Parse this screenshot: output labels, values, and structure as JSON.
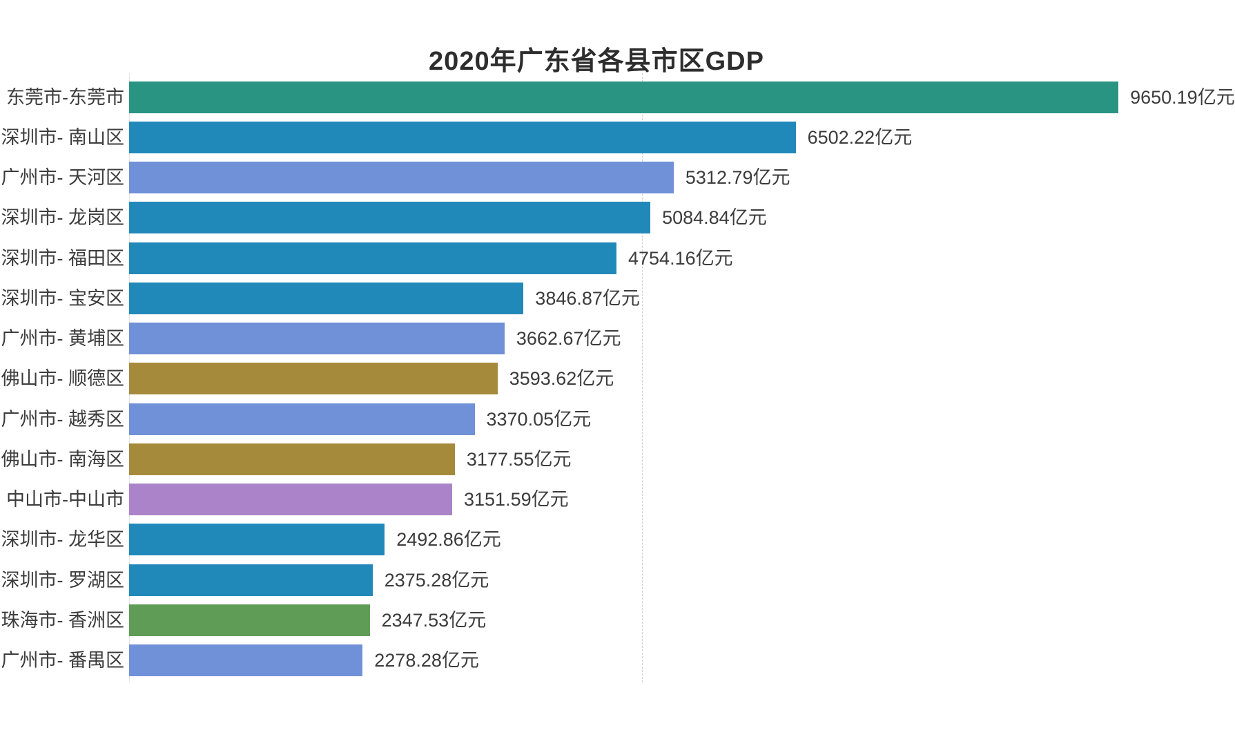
{
  "page": {
    "background": "#ffffff"
  },
  "chart_data": {
    "type": "bar",
    "orientation": "horizontal",
    "title": "2020年广东省各县市区GDP",
    "unit": "亿元",
    "categories": [
      "东莞市-东莞市",
      "深圳市- 南山区",
      "广州市- 天河区",
      "深圳市- 龙岗区",
      "深圳市- 福田区",
      "深圳市- 宝安区",
      "广州市- 黄埔区",
      "佛山市- 顺德区",
      "广州市- 越秀区",
      "佛山市- 南海区",
      "中山市-中山市",
      "深圳市- 龙华区",
      "深圳市- 罗湖区",
      "珠海市- 香洲区",
      "广州市- 番禺区"
    ],
    "values": [
      9650.19,
      6502.22,
      5312.79,
      5084.84,
      4754.16,
      3846.87,
      3662.67,
      3593.62,
      3370.05,
      3177.55,
      3151.59,
      2492.86,
      2375.28,
      2347.53,
      2278.28
    ],
    "value_labels": [
      "9650.19亿元",
      "6502.22亿元",
      "5312.79亿元",
      "5084.84亿元",
      "4754.16亿元",
      "3846.87亿元",
      "3662.67亿元",
      "3593.62亿元",
      "3370.05亿元",
      "3177.55亿元",
      "3151.59亿元",
      "2492.86亿元",
      "2375.28亿元",
      "2347.53亿元",
      "2278.28亿元"
    ],
    "bar_colors": [
      "#2A9482",
      "#2189B9",
      "#7090D8",
      "#2189B9",
      "#2189B9",
      "#2189B9",
      "#7090D8",
      "#A68A3C",
      "#7090D8",
      "#A68A3C",
      "#AA83C9",
      "#2189B9",
      "#2189B9",
      "#5F9C55",
      "#7090D8"
    ],
    "city_color_map": {
      "东莞市": "#2A9482",
      "深圳市": "#2189B9",
      "广州市": "#7090D8",
      "佛山市": "#A68A3C",
      "中山市": "#AA83C9",
      "珠海市": "#5F9C55"
    },
    "gridlines_x": [
      5000
    ],
    "grid_style": "dashed-vertical",
    "legend_position": "none",
    "value_labels_visible": true,
    "axis_tick_labels_visible": false,
    "title_color": "#2d2d2d",
    "text_color": "#3c3c3c",
    "background": "#ffffff"
  }
}
